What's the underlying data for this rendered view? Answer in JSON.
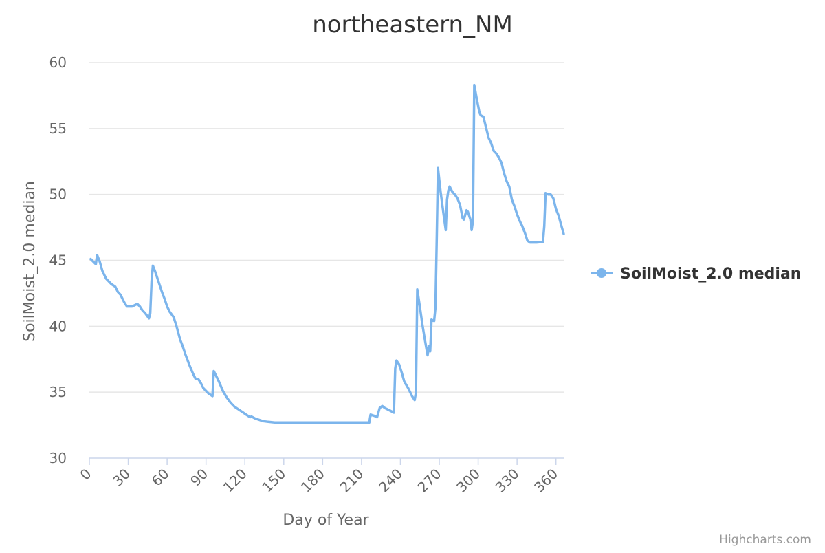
{
  "chart_data": {
    "type": "line",
    "title": "northeastern_NM",
    "xlabel": "Day of Year",
    "ylabel": "SoilMoist_2.0 median",
    "xlim": [
      0,
      366
    ],
    "ylim": [
      30,
      60
    ],
    "x_ticks": [
      0,
      30,
      60,
      90,
      120,
      150,
      180,
      210,
      240,
      270,
      300,
      330,
      360
    ],
    "y_ticks": [
      30,
      35,
      40,
      45,
      50,
      55,
      60
    ],
    "grid": true,
    "legend_position": "right",
    "series": [
      {
        "name": "SoilMoist_2.0 median",
        "color": "#7cb5ec",
        "points": [
          [
            1,
            45.1
          ],
          [
            5,
            44.7
          ],
          [
            6,
            45.4
          ],
          [
            8,
            44.9
          ],
          [
            10,
            44.2
          ],
          [
            12,
            43.8
          ],
          [
            13,
            43.6
          ],
          [
            15,
            43.4
          ],
          [
            17,
            43.2
          ],
          [
            20,
            43.0
          ],
          [
            22,
            42.6
          ],
          [
            24,
            42.4
          ],
          [
            27,
            41.8
          ],
          [
            29,
            41.5
          ],
          [
            33,
            41.5
          ],
          [
            37,
            41.7
          ],
          [
            39,
            41.5
          ],
          [
            41,
            41.2
          ],
          [
            43,
            41.0
          ],
          [
            46,
            40.6
          ],
          [
            47,
            41.0
          ],
          [
            48,
            43.4
          ],
          [
            49,
            44.6
          ],
          [
            51,
            44.1
          ],
          [
            53,
            43.5
          ],
          [
            56,
            42.6
          ],
          [
            58,
            42.1
          ],
          [
            60,
            41.5
          ],
          [
            62,
            41.1
          ],
          [
            65,
            40.7
          ],
          [
            67,
            40.1
          ],
          [
            70,
            39.0
          ],
          [
            72,
            38.5
          ],
          [
            74,
            37.9
          ],
          [
            77,
            37.1
          ],
          [
            80,
            36.4
          ],
          [
            82,
            36.0
          ],
          [
            84,
            36.0
          ],
          [
            86,
            35.7
          ],
          [
            88,
            35.3
          ],
          [
            92,
            34.9
          ],
          [
            95,
            34.7
          ],
          [
            96,
            36.6
          ],
          [
            98,
            36.2
          ],
          [
            100,
            35.8
          ],
          [
            103,
            35.1
          ],
          [
            106,
            34.6
          ],
          [
            109,
            34.2
          ],
          [
            112,
            33.9
          ],
          [
            115,
            33.7
          ],
          [
            118,
            33.5
          ],
          [
            121,
            33.3
          ],
          [
            124,
            33.1
          ],
          [
            125,
            33.15
          ],
          [
            128,
            33.0
          ],
          [
            131,
            32.9
          ],
          [
            134,
            32.8
          ],
          [
            138,
            32.75
          ],
          [
            143,
            32.7
          ],
          [
            160,
            32.7
          ],
          [
            180,
            32.7
          ],
          [
            200,
            32.7
          ],
          [
            216,
            32.7
          ],
          [
            217,
            33.3
          ],
          [
            220,
            33.2
          ],
          [
            222,
            33.1
          ],
          [
            224,
            33.8
          ],
          [
            226,
            33.95
          ],
          [
            228,
            33.8
          ],
          [
            232,
            33.6
          ],
          [
            235,
            33.45
          ],
          [
            236,
            36.8
          ],
          [
            237,
            37.4
          ],
          [
            239,
            37.1
          ],
          [
            241,
            36.5
          ],
          [
            243,
            35.8
          ],
          [
            246,
            35.3
          ],
          [
            249,
            34.7
          ],
          [
            251,
            34.4
          ],
          [
            252,
            35.0
          ],
          [
            253,
            42.8
          ],
          [
            255,
            41.5
          ],
          [
            257,
            40.1
          ],
          [
            259,
            38.9
          ],
          [
            261,
            37.8
          ],
          [
            262,
            38.5
          ],
          [
            263,
            38.1
          ],
          [
            264,
            40.5
          ],
          [
            266,
            40.4
          ],
          [
            267,
            41.4
          ],
          [
            268,
            46.3
          ],
          [
            269,
            52.0
          ],
          [
            271,
            50.2
          ],
          [
            273,
            48.7
          ],
          [
            275,
            47.3
          ],
          [
            276,
            49.6
          ],
          [
            277,
            50.3
          ],
          [
            278,
            50.6
          ],
          [
            280,
            50.2
          ],
          [
            282,
            50.0
          ],
          [
            284,
            49.7
          ],
          [
            286,
            49.2
          ],
          [
            288,
            48.2
          ],
          [
            289,
            48.1
          ],
          [
            291,
            48.8
          ],
          [
            292,
            48.7
          ],
          [
            294,
            48.1
          ],
          [
            295,
            47.3
          ],
          [
            296,
            48.0
          ],
          [
            297,
            58.3
          ],
          [
            299,
            57.2
          ],
          [
            301,
            56.2
          ],
          [
            302,
            56.0
          ],
          [
            304,
            55.9
          ],
          [
            306,
            55.1
          ],
          [
            308,
            54.3
          ],
          [
            310,
            53.9
          ],
          [
            312,
            53.3
          ],
          [
            314,
            53.1
          ],
          [
            316,
            52.8
          ],
          [
            318,
            52.4
          ],
          [
            320,
            51.6
          ],
          [
            322,
            51.0
          ],
          [
            324,
            50.6
          ],
          [
            326,
            49.6
          ],
          [
            328,
            49.1
          ],
          [
            330,
            48.5
          ],
          [
            332,
            48.0
          ],
          [
            334,
            47.6
          ],
          [
            336,
            47.1
          ],
          [
            338,
            46.5
          ],
          [
            340,
            46.35
          ],
          [
            345,
            46.35
          ],
          [
            350,
            46.4
          ],
          [
            351,
            47.6
          ],
          [
            352,
            50.1
          ],
          [
            354,
            50.0
          ],
          [
            356,
            50.0
          ],
          [
            358,
            49.7
          ],
          [
            360,
            48.9
          ],
          [
            362,
            48.4
          ],
          [
            364,
            47.7
          ],
          [
            366,
            47.0
          ]
        ]
      }
    ]
  },
  "credits": "Highcharts.com"
}
